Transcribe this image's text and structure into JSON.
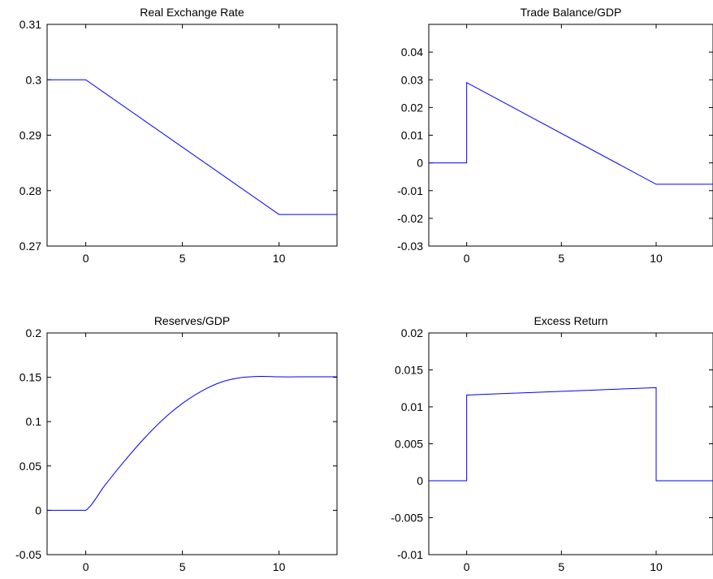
{
  "chart_data": [
    {
      "type": "line",
      "title": "Real Exchange Rate",
      "xlim": [
        -2,
        13
      ],
      "ylim": [
        0.27,
        0.31
      ],
      "xticks": [
        0,
        5,
        10
      ],
      "xtick_labels": [
        "0",
        "5",
        "10"
      ],
      "yticks": [
        0.27,
        0.28,
        0.29,
        0.3,
        0.31
      ],
      "ytick_labels": [
        "0.27",
        "0.28",
        "0.29",
        "0.3",
        "0.31"
      ],
      "series": [
        {
          "color": "#0000ff",
          "x": [
            -2,
            0,
            10,
            13
          ],
          "y": [
            0.3,
            0.3,
            0.2757,
            0.2757
          ]
        }
      ]
    },
    {
      "type": "line",
      "title": "Trade Balance/GDP",
      "xlim": [
        -2,
        13
      ],
      "ylim": [
        -0.03,
        0.05
      ],
      "xticks": [
        0,
        5,
        10
      ],
      "xtick_labels": [
        "0",
        "5",
        "10"
      ],
      "yticks": [
        -0.03,
        -0.02,
        -0.01,
        0,
        0.01,
        0.02,
        0.03,
        0.04
      ],
      "ytick_labels": [
        "-0.03",
        "-0.02",
        "-0.01",
        "0",
        "0.01",
        "0.02",
        "0.03",
        "0.04"
      ],
      "series": [
        {
          "color": "#0000ff",
          "x": [
            -2,
            0,
            0,
            10,
            13
          ],
          "y": [
            0,
            0,
            0.029,
            -0.0077,
            -0.0077
          ]
        }
      ]
    },
    {
      "type": "line",
      "title": "Reserves/GDP",
      "xlim": [
        -2,
        13
      ],
      "ylim": [
        -0.05,
        0.2
      ],
      "xticks": [
        0,
        5,
        10
      ],
      "xtick_labels": [
        "0",
        "5",
        "10"
      ],
      "yticks": [
        -0.05,
        0,
        0.05,
        0.1,
        0.15,
        0.2
      ],
      "ytick_labels": [
        "-0.05",
        "0",
        "0.05",
        "0.1",
        "0.15",
        "0.2"
      ],
      "series": [
        {
          "color": "#0000ff",
          "x": [
            -2,
            -1,
            0,
            1,
            2,
            3,
            4,
            5,
            6,
            7,
            8,
            9,
            10,
            11,
            12,
            13
          ],
          "y": [
            0,
            0,
            0,
            0.0285,
            0.0555,
            0.0805,
            0.1025,
            0.1205,
            0.1345,
            0.1445,
            0.1495,
            0.151,
            0.1505,
            0.1505,
            0.1505,
            0.1505
          ]
        }
      ]
    },
    {
      "type": "line",
      "title": "Excess Return",
      "xlim": [
        -2,
        13
      ],
      "ylim": [
        -0.01,
        0.02
      ],
      "xticks": [
        0,
        5,
        10
      ],
      "xtick_labels": [
        "0",
        "5",
        "10"
      ],
      "yticks": [
        -0.01,
        -0.005,
        0,
        0.005,
        0.01,
        0.015,
        0.02
      ],
      "ytick_labels": [
        "-0.01",
        "-0.005",
        "0",
        "0.005",
        "0.01",
        "0.015",
        "0.02"
      ],
      "series": [
        {
          "color": "#0000ff",
          "x": [
            -2,
            0,
            0,
            10,
            10,
            13
          ],
          "y": [
            0,
            0,
            0.0116,
            0.0126,
            0,
            0
          ]
        }
      ]
    }
  ]
}
